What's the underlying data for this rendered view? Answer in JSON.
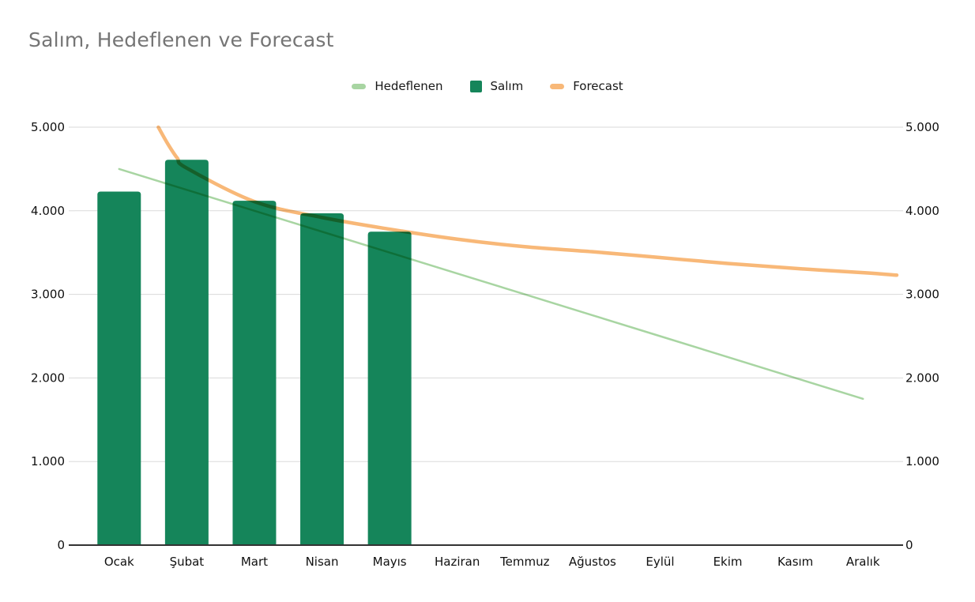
{
  "title": "Salım, Hedeflenen ve Forecast",
  "legend": [
    {
      "label": "Hedeflenen",
      "color": "#a8d5a2",
      "swatch": "line"
    },
    {
      "label": "Salım",
      "color": "#15855a",
      "swatch": "square"
    },
    {
      "label": "Forecast",
      "color": "#f8b878",
      "swatch": "line"
    }
  ],
  "colors": {
    "grid": "#dadada",
    "axis": "#333333",
    "title": "#757575",
    "tick_text": "#101010",
    "background": "#ffffff"
  },
  "chart_data": {
    "type": "bar",
    "title": "Salım, Hedeflenen ve Forecast",
    "categories": [
      "Ocak",
      "Şubat",
      "Mart",
      "Nisan",
      "Mayıs",
      "Haziran",
      "Temmuz",
      "Ağustos",
      "Eylül",
      "Ekim",
      "Kasım",
      "Aralık"
    ],
    "series": [
      {
        "name": "Salım",
        "type": "bar",
        "color": "#15855a",
        "values": [
          4230,
          4610,
          4120,
          3970,
          3750,
          null,
          null,
          null,
          null,
          null,
          null,
          null
        ]
      },
      {
        "name": "Hedeflenen",
        "type": "line",
        "color": "#a8d5a2",
        "values": [
          4500,
          4250,
          4000,
          3750,
          3500,
          3250,
          3000,
          2750,
          2500,
          2250,
          2000,
          1750
        ]
      },
      {
        "name": "Forecast",
        "type": "line-smooth",
        "color": "#f8b878",
        "values_at_months": [
          null,
          4510,
          4110,
          3920,
          3780,
          3660,
          3570,
          3510,
          3440,
          3370,
          3310,
          3260
        ],
        "note_clipped_at_ymax": "curve enters plot at y=5.000 between Ocak and Şubat and runs to right plot edge",
        "path_points": [
          {
            "m": 1.58,
            "v": 5000
          },
          {
            "m": 1.72,
            "v": 4800
          },
          {
            "m": 1.86,
            "v": 4630
          },
          {
            "m": 2,
            "v": 4510
          },
          {
            "m": 3,
            "v": 4110
          },
          {
            "m": 4,
            "v": 3920
          },
          {
            "m": 5,
            "v": 3780
          },
          {
            "m": 6,
            "v": 3660
          },
          {
            "m": 7,
            "v": 3570
          },
          {
            "m": 8,
            "v": 3510
          },
          {
            "m": 9,
            "v": 3440
          },
          {
            "m": 10,
            "v": 3370
          },
          {
            "m": 11,
            "v": 3310
          },
          {
            "m": 12,
            "v": 3260
          },
          {
            "m": 12.5,
            "v": 3230
          }
        ]
      }
    ],
    "y_axis": {
      "min": 0,
      "max": 5000,
      "step": 1000,
      "tick_labels": [
        "0",
        "1.000",
        "2.000",
        "3.000",
        "4.000",
        "5.000"
      ],
      "sides": [
        "left",
        "right"
      ]
    },
    "ylim": [
      0,
      5000
    ],
    "grid": true,
    "legend_position": "top"
  }
}
